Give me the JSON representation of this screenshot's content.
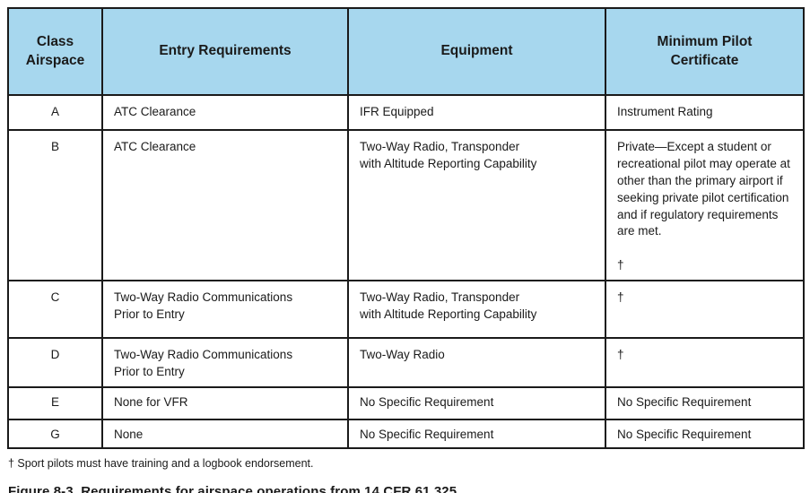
{
  "colors": {
    "header_bg": "#a7d7ee",
    "border": "#1a1a1a",
    "text": "#1a1a1a"
  },
  "table": {
    "headers": [
      "Class\nAirspace",
      "Entry Requirements",
      "Equipment",
      "Minimum Pilot\nCertificate"
    ],
    "rows": [
      {
        "class": "A",
        "entry": "ATC Clearance",
        "equipment": "IFR Equipped",
        "certificate": "Instrument Rating"
      },
      {
        "class": "B",
        "entry": "ATC Clearance",
        "equipment": "Two-Way Radio, Transponder\nwith Altitude Reporting Capability",
        "certificate": "Private—Except a student or recreational pilot may operate at other than the primary airport if seeking private pilot certification and if regulatory requirements are met.\n\n†"
      },
      {
        "class": "C",
        "entry": "Two-Way Radio Communications\nPrior to Entry",
        "equipment": "Two-Way Radio, Transponder\nwith Altitude Reporting Capability",
        "certificate": "†"
      },
      {
        "class": "D",
        "entry": "Two-Way Radio Communications\nPrior to Entry",
        "equipment": "Two-Way Radio",
        "certificate": "†"
      },
      {
        "class": "E",
        "entry": "None for VFR",
        "equipment": "No Specific Requirement",
        "certificate": "No Specific Requirement"
      },
      {
        "class": "G",
        "entry": "None",
        "equipment": "No Specific Requirement",
        "certificate": "No Specific Requirement"
      }
    ]
  },
  "footnote": "† Sport pilots must have training and a logbook endorsement.",
  "caption": "Figure 8-3. Requirements for airspace operations from 14 CFR 61.325."
}
